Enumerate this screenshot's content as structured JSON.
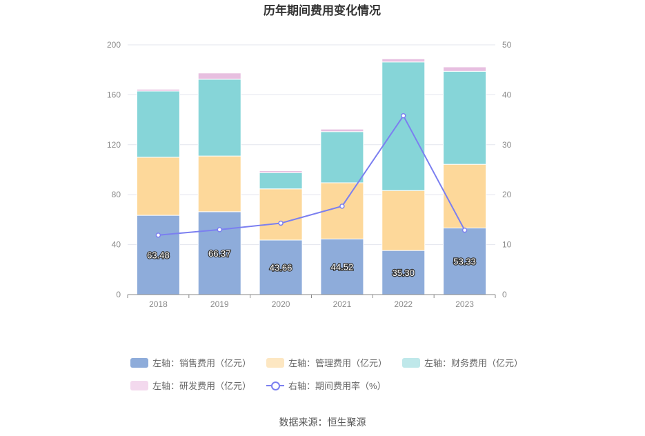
{
  "chart_data": {
    "type": "bar",
    "title": "历年期间费用变化情况",
    "categories": [
      "2018",
      "2019",
      "2020",
      "2021",
      "2022",
      "2023"
    ],
    "stacked": true,
    "left_axis": {
      "ylim": [
        0,
        200
      ],
      "ticks": [
        "0",
        "40",
        "80",
        "120",
        "160",
        "200"
      ]
    },
    "right_axis": {
      "ylim": [
        0,
        50
      ],
      "ticks": [
        "0",
        "10",
        "20",
        "30",
        "40",
        "50"
      ]
    },
    "series": [
      {
        "name": "左轴：销售费用（亿元）",
        "axis": "left",
        "color": "#8eacda",
        "values": [
          63.48,
          66.37,
          43.66,
          44.52,
          35.3,
          53.33
        ],
        "labels": [
          "63.48",
          "66.37",
          "43.66",
          "44.52",
          "35.30",
          "53.33"
        ]
      },
      {
        "name": "左轴：管理费用（亿元）",
        "axis": "left",
        "color": "#fdd89a",
        "values": [
          46.5,
          44.6,
          41.0,
          45.0,
          48.0,
          51.0
        ]
      },
      {
        "name": "左轴：财务费用（亿元）",
        "axis": "left",
        "color": "#86d5d8",
        "values": [
          53.0,
          61.5,
          13.0,
          41.0,
          103.0,
          74.5
        ]
      },
      {
        "name": "左轴：研发费用（亿元）",
        "axis": "left",
        "color": "#e7bfe0",
        "values": [
          1.5,
          5.0,
          1.5,
          2.0,
          2.5,
          3.5
        ]
      },
      {
        "name": "右轴：期间费用率（%）",
        "axis": "right",
        "type": "line",
        "color": "#7b7ff0",
        "values": [
          11.9,
          13.0,
          14.3,
          17.7,
          35.8,
          12.9
        ]
      }
    ],
    "legend_position": "bottom"
  },
  "source": "数据来源：恒生聚源"
}
